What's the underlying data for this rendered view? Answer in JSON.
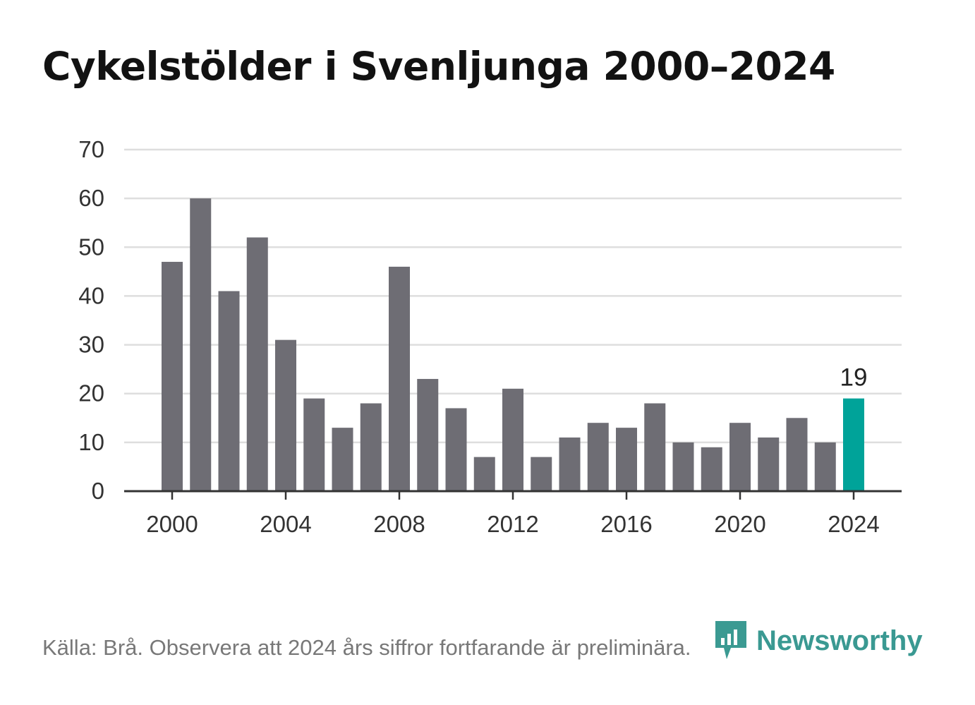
{
  "title": "Cykelstölder i Svenljunga 2000–2024",
  "source": "Källa: Brå. Observera att 2024 års siffror fortfarande är preliminära.",
  "brand": {
    "name": "Newsworthy",
    "icon": "newsworthy-logo-icon"
  },
  "colors": {
    "bar": "#6e6d74",
    "highlight": "#00a399",
    "grid": "#dedede",
    "axis": "#333333",
    "tick_text": "#333333",
    "brand": "#2a9189"
  },
  "chart_data": {
    "type": "bar",
    "title": "Cykelstölder i Svenljunga 2000–2024",
    "xlabel": "",
    "ylabel": "",
    "ylim": [
      0,
      70
    ],
    "yticks": [
      0,
      10,
      20,
      30,
      40,
      50,
      60,
      70
    ],
    "xticks": [
      2000,
      2004,
      2008,
      2012,
      2016,
      2020,
      2024
    ],
    "grid": true,
    "categories": [
      2000,
      2001,
      2002,
      2003,
      2004,
      2005,
      2006,
      2007,
      2008,
      2009,
      2010,
      2011,
      2012,
      2013,
      2014,
      2015,
      2016,
      2017,
      2018,
      2019,
      2020,
      2021,
      2022,
      2023,
      2024
    ],
    "values": [
      47,
      60,
      41,
      52,
      31,
      19,
      13,
      18,
      46,
      23,
      17,
      7,
      21,
      7,
      11,
      14,
      13,
      18,
      10,
      9,
      14,
      11,
      15,
      10,
      19
    ],
    "highlight": {
      "category": 2024,
      "label": "19"
    }
  }
}
